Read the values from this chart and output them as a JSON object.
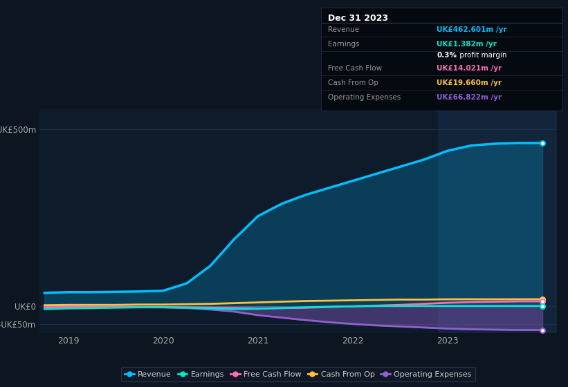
{
  "background_color": "#0d1520",
  "plot_bg_color": "#0d1b2a",
  "grid_color": "#1e3048",
  "highlight_color": "#12253a",
  "years": [
    2018.75,
    2019.0,
    2019.25,
    2019.5,
    2019.75,
    2020.0,
    2020.25,
    2020.5,
    2020.75,
    2021.0,
    2021.25,
    2021.5,
    2021.75,
    2022.0,
    2022.25,
    2022.5,
    2022.75,
    2023.0,
    2023.25,
    2023.5,
    2023.75,
    2024.0
  ],
  "revenue": [
    38,
    40,
    40,
    41,
    42,
    44,
    65,
    115,
    190,
    255,
    290,
    315,
    335,
    355,
    375,
    395,
    415,
    440,
    455,
    460,
    462,
    462
  ],
  "operating_expenses": [
    0,
    0,
    -1,
    -1,
    -2,
    -3,
    -5,
    -9,
    -15,
    -25,
    -32,
    -39,
    -45,
    -50,
    -54,
    -57,
    -60,
    -63,
    -65,
    -66,
    -67,
    -67
  ],
  "cash_from_op": [
    3,
    4,
    4,
    4,
    5,
    5,
    6,
    7,
    9,
    11,
    13,
    15,
    16,
    17,
    18,
    19,
    19,
    20,
    20,
    20,
    20,
    20
  ],
  "free_cash_flow": [
    -3,
    -2,
    -2,
    -2,
    -2,
    -2,
    -3,
    -4,
    -5,
    -6,
    -5,
    -4,
    -2,
    0,
    2,
    4,
    7,
    10,
    12,
    13,
    14,
    14
  ],
  "earnings": [
    -8,
    -6,
    -5,
    -4,
    -3,
    -3,
    -4,
    -6,
    -8,
    -7,
    -5,
    -3,
    -1,
    0,
    1,
    1,
    1,
    1,
    1,
    1,
    1,
    1
  ],
  "revenue_color": "#00bfff",
  "earnings_color": "#00e5cc",
  "free_cash_flow_color": "#ff6eb4",
  "cash_from_op_color": "#ffc040",
  "operating_expenses_color": "#9060d0",
  "ylim": [
    -75,
    560
  ],
  "yticks": [
    -50,
    0,
    500
  ],
  "ytick_labels": [
    "-UK£50m",
    "UK£0",
    "UK£500m"
  ],
  "xlim": [
    2018.7,
    2024.15
  ],
  "xticks": [
    2019,
    2020,
    2021,
    2022,
    2023
  ],
  "highlight_x_start": 2022.9,
  "highlight_x_end": 2024.15,
  "info_box": {
    "title": "Dec 31 2023",
    "rows": [
      {
        "label": "Revenue",
        "value": "UK£462.601m /yr",
        "color": "#00bfff"
      },
      {
        "label": "Earnings",
        "value": "UK£1.382m /yr",
        "color": "#00e5cc"
      },
      {
        "label": "",
        "value": "0.3% profit margin",
        "color": "#ffffff"
      },
      {
        "label": "Free Cash Flow",
        "value": "UK£14.021m /yr",
        "color": "#ff6eb4"
      },
      {
        "label": "Cash From Op",
        "value": "UK£19.660m /yr",
        "color": "#ffc040"
      },
      {
        "label": "Operating Expenses",
        "value": "UK£66.822m /yr",
        "color": "#9060d0"
      }
    ]
  },
  "legend_items": [
    {
      "label": "Revenue",
      "color": "#00bfff"
    },
    {
      "label": "Earnings",
      "color": "#00e5cc"
    },
    {
      "label": "Free Cash Flow",
      "color": "#ff6eb4"
    },
    {
      "label": "Cash From Op",
      "color": "#ffc040"
    },
    {
      "label": "Operating Expenses",
      "color": "#9060d0"
    }
  ]
}
